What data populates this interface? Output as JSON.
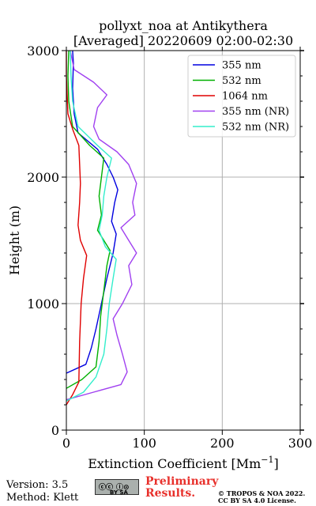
{
  "chart_data": {
    "type": "line",
    "title_line1": "pollyxt_noa at Antikythera",
    "title_line2": "[Averaged] 20220609 02:00-02:30",
    "xlabel": "Extinction Coefficient [Mm",
    "xlabel_sup": "−1",
    "xlabel_end": "]",
    "ylabel": "Height (m)",
    "xlim": [
      0,
      300
    ],
    "ylim": [
      0,
      3000
    ],
    "xticks": [
      0,
      100,
      200,
      300
    ],
    "yticks": [
      0,
      1000,
      2000,
      3000
    ],
    "grid": true,
    "legend_position": "top-right",
    "series": [
      {
        "name": "355 nm",
        "color": "#0000e0",
        "points": [
          [
            0,
            450
          ],
          [
            25,
            520
          ],
          [
            32,
            650
          ],
          [
            38,
            800
          ],
          [
            45,
            1000
          ],
          [
            52,
            1200
          ],
          [
            60,
            1400
          ],
          [
            64,
            1550
          ],
          [
            58,
            1650
          ],
          [
            62,
            1800
          ],
          [
            66,
            1900
          ],
          [
            60,
            2000
          ],
          [
            52,
            2100
          ],
          [
            40,
            2220
          ],
          [
            15,
            2350
          ],
          [
            10,
            2500
          ],
          [
            8,
            2700
          ],
          [
            9,
            2900
          ],
          [
            8,
            3000
          ]
        ]
      },
      {
        "name": "532 nm",
        "color": "#00b000",
        "points": [
          [
            0,
            330
          ],
          [
            20,
            400
          ],
          [
            38,
            500
          ],
          [
            42,
            700
          ],
          [
            44,
            900
          ],
          [
            48,
            1100
          ],
          [
            52,
            1300
          ],
          [
            56,
            1420
          ],
          [
            48,
            1500
          ],
          [
            40,
            1580
          ],
          [
            45,
            1700
          ],
          [
            42,
            1850
          ],
          [
            45,
            2000
          ],
          [
            48,
            2150
          ],
          [
            30,
            2250
          ],
          [
            8,
            2400
          ],
          [
            3,
            2600
          ],
          [
            2,
            2800
          ],
          [
            3,
            3000
          ]
        ]
      },
      {
        "name": "1064 nm",
        "color": "#e00000",
        "points": [
          [
            0,
            200
          ],
          [
            8,
            280
          ],
          [
            16,
            380
          ],
          [
            17,
            700
          ],
          [
            19,
            1000
          ],
          [
            22,
            1200
          ],
          [
            26,
            1380
          ],
          [
            18,
            1500
          ],
          [
            15,
            1620
          ],
          [
            17,
            1800
          ],
          [
            18,
            1950
          ],
          [
            17,
            2100
          ],
          [
            16,
            2250
          ],
          [
            8,
            2380
          ],
          [
            2,
            2500
          ],
          [
            0,
            2800
          ],
          [
            0,
            3000
          ]
        ]
      },
      {
        "name": "355 nm (NR)",
        "color": "#a040f0",
        "points": [
          [
            0,
            240
          ],
          [
            35,
            300
          ],
          [
            70,
            360
          ],
          [
            78,
            460
          ],
          [
            72,
            600
          ],
          [
            65,
            750
          ],
          [
            60,
            880
          ],
          [
            72,
            1000
          ],
          [
            84,
            1150
          ],
          [
            80,
            1300
          ],
          [
            90,
            1400
          ],
          [
            80,
            1500
          ],
          [
            70,
            1600
          ],
          [
            88,
            1700
          ],
          [
            85,
            1800
          ],
          [
            90,
            1950
          ],
          [
            80,
            2100
          ],
          [
            65,
            2200
          ],
          [
            42,
            2300
          ],
          [
            35,
            2400
          ],
          [
            40,
            2550
          ],
          [
            52,
            2650
          ],
          [
            35,
            2750
          ],
          [
            10,
            2850
          ],
          [
            5,
            3000
          ]
        ]
      },
      {
        "name": "532 nm (NR)",
        "color": "#33eecc",
        "points": [
          [
            0,
            230
          ],
          [
            22,
            300
          ],
          [
            38,
            420
          ],
          [
            48,
            600
          ],
          [
            52,
            800
          ],
          [
            55,
            1000
          ],
          [
            60,
            1200
          ],
          [
            64,
            1350
          ],
          [
            50,
            1450
          ],
          [
            42,
            1580
          ],
          [
            46,
            1700
          ],
          [
            48,
            1850
          ],
          [
            52,
            2000
          ],
          [
            58,
            2150
          ],
          [
            40,
            2250
          ],
          [
            15,
            2400
          ],
          [
            8,
            2600
          ],
          [
            6,
            2800
          ],
          [
            5,
            3000
          ]
        ]
      }
    ]
  },
  "footer": {
    "version": "Version: 3.5",
    "method": "Method: Klett",
    "prelim_line1": "Preliminary",
    "prelim_line2": "Results.",
    "copyright_line1": "© TROPOS & NOA 2022.",
    "copyright_line2": "CC BY SA 4.0 License.",
    "cc_badge": "BY SA"
  }
}
